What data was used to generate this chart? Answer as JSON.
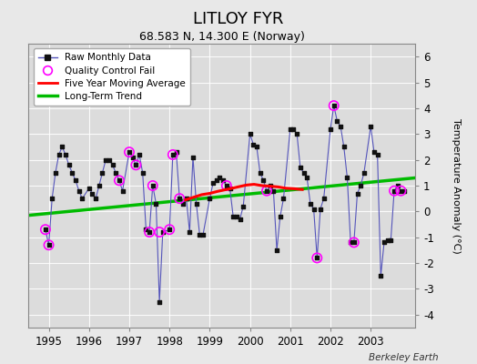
{
  "title": "LITLOY FYR",
  "subtitle": "68.583 N, 14.300 E (Norway)",
  "ylabel": "Temperature Anomaly (°C)",
  "credit": "Berkeley Earth",
  "ylim": [
    -4.5,
    6.5
  ],
  "xlim": [
    1994.5,
    2004.1
  ],
  "xticks": [
    1995,
    1996,
    1997,
    1998,
    1999,
    2000,
    2001,
    2002,
    2003
  ],
  "yticks": [
    -4,
    -3,
    -2,
    -1,
    0,
    1,
    2,
    3,
    4,
    5,
    6
  ],
  "bg_color": "#e8e8e8",
  "plot_bg_color": "#dcdcdc",
  "raw_color": "#5555bb",
  "dot_color": "#111111",
  "qc_color": "magenta",
  "ma_color": "red",
  "trend_color": "#00bb00",
  "raw_x": [
    1994.917,
    1995.0,
    1995.083,
    1995.167,
    1995.25,
    1995.333,
    1995.417,
    1995.5,
    1995.583,
    1995.667,
    1995.75,
    1995.833,
    1996.0,
    1996.083,
    1996.167,
    1996.25,
    1996.333,
    1996.417,
    1996.5,
    1996.583,
    1996.667,
    1996.75,
    1996.833,
    1997.0,
    1997.083,
    1997.167,
    1997.25,
    1997.333,
    1997.417,
    1997.5,
    1997.583,
    1997.667,
    1997.75,
    1997.833,
    1998.0,
    1998.083,
    1998.167,
    1998.25,
    1998.333,
    1998.417,
    1998.5,
    1998.583,
    1998.667,
    1998.75,
    1998.833,
    1999.0,
    1999.083,
    1999.167,
    1999.25,
    1999.333,
    1999.417,
    1999.5,
    1999.583,
    1999.667,
    1999.75,
    1999.833,
    2000.0,
    2000.083,
    2000.167,
    2000.25,
    2000.333,
    2000.417,
    2000.5,
    2000.583,
    2000.667,
    2000.75,
    2000.833,
    2001.0,
    2001.083,
    2001.167,
    2001.25,
    2001.333,
    2001.417,
    2001.5,
    2001.583,
    2001.667,
    2001.75,
    2001.833,
    2002.0,
    2002.083,
    2002.167,
    2002.25,
    2002.333,
    2002.417,
    2002.5,
    2002.583,
    2002.667,
    2002.75,
    2002.833,
    2003.0,
    2003.083,
    2003.167,
    2003.25,
    2003.333,
    2003.417,
    2003.5,
    2003.583,
    2003.667,
    2003.75,
    2003.833
  ],
  "raw_y": [
    -0.7,
    -1.3,
    0.5,
    1.5,
    2.2,
    2.5,
    2.2,
    1.8,
    1.5,
    1.2,
    0.8,
    0.5,
    0.9,
    0.7,
    0.5,
    1.0,
    1.5,
    2.0,
    2.0,
    1.8,
    1.5,
    1.2,
    0.8,
    2.3,
    2.1,
    1.8,
    2.2,
    1.5,
    -0.7,
    -0.8,
    1.0,
    0.3,
    -3.5,
    -0.8,
    -0.7,
    2.2,
    2.3,
    0.5,
    0.3,
    0.5,
    -0.8,
    2.1,
    0.3,
    -0.9,
    -0.9,
    0.5,
    1.1,
    1.2,
    1.3,
    1.2,
    1.0,
    0.9,
    -0.2,
    -0.2,
    -0.3,
    0.2,
    3.0,
    2.6,
    2.5,
    1.5,
    1.2,
    0.8,
    1.0,
    0.8,
    -1.5,
    -0.2,
    0.5,
    3.2,
    3.2,
    3.0,
    1.7,
    1.5,
    1.3,
    0.3,
    0.1,
    -1.8,
    0.1,
    0.5,
    3.2,
    4.1,
    3.5,
    3.3,
    2.5,
    1.3,
    -1.2,
    -1.2,
    0.7,
    1.0,
    1.5,
    3.3,
    2.3,
    2.2,
    -2.5,
    -1.2,
    -1.1,
    -1.1,
    0.8,
    1.0,
    0.8,
    0.8
  ],
  "qc_x": [
    1994.917,
    1995.0,
    1996.75,
    1997.0,
    1997.167,
    1997.5,
    1997.583,
    1997.75,
    1998.0,
    1998.083,
    1998.25,
    1999.417,
    2000.417,
    2001.667,
    2002.083,
    2002.583,
    2003.583,
    2003.75
  ],
  "qc_y": [
    -0.7,
    -1.3,
    1.2,
    2.3,
    1.8,
    -0.8,
    1.0,
    -0.8,
    -0.7,
    2.2,
    0.5,
    1.0,
    0.8,
    -1.8,
    4.1,
    -1.2,
    0.8,
    0.8
  ],
  "ma_x": [
    1998.4,
    1998.6,
    1998.8,
    1999.0,
    1999.2,
    1999.5,
    1999.7,
    1999.9,
    2000.1,
    2000.3,
    2000.5,
    2000.7,
    2000.9,
    2001.1,
    2001.3
  ],
  "ma_y": [
    0.45,
    0.55,
    0.65,
    0.7,
    0.78,
    0.88,
    0.95,
    1.02,
    1.05,
    1.0,
    0.98,
    0.95,
    0.9,
    0.88,
    0.85
  ],
  "trend_x": [
    1994.5,
    2004.1
  ],
  "trend_y": [
    -0.15,
    1.3
  ]
}
